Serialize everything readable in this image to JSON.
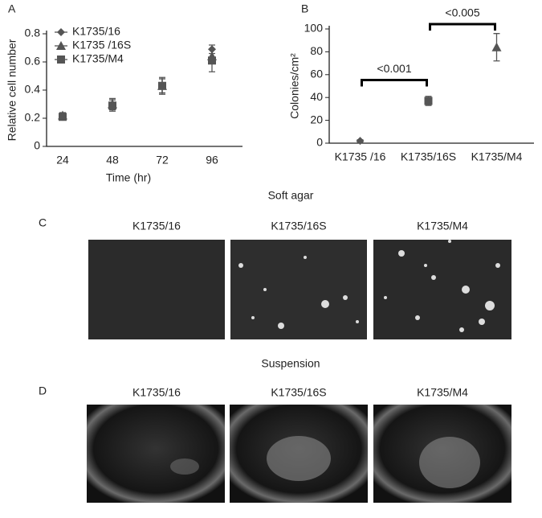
{
  "chart_data": [
    {
      "type": "scatter",
      "panel": "A",
      "x_label": "Time (hr)",
      "y_label": "Relative cell number",
      "categories": [
        "24",
        "48",
        "72",
        "96"
      ],
      "series": [
        {
          "name": "K1735/16",
          "color": "#555555",
          "marker": "diamond",
          "values": [
            0.21,
            0.3,
            0.43,
            0.69
          ],
          "errors": [
            0.02,
            0.04,
            0.05,
            0.03
          ]
        },
        {
          "name": "K1735 /16S",
          "color": "#555555",
          "marker": "triangle",
          "values": [
            0.22,
            0.3,
            0.43,
            0.64
          ],
          "errors": [
            0.02,
            0.04,
            0.05,
            0.05
          ]
        },
        {
          "name": "K1735/M4",
          "color": "#555555",
          "marker": "square",
          "values": [
            0.21,
            0.29,
            0.43,
            0.61
          ],
          "errors": [
            0.02,
            0.04,
            0.06,
            0.08
          ]
        }
      ],
      "ylim": [
        0,
        0.8
      ],
      "yticks": [
        0,
        0.2,
        0.4,
        0.6,
        0.8
      ],
      "legend": "top-left"
    },
    {
      "type": "scatter",
      "panel": "B",
      "y_label": "Colonies/cm²",
      "categories": [
        "K1735 /16",
        "K1735/16S",
        "K1735/M4"
      ],
      "values": [
        2,
        37,
        84
      ],
      "errors": [
        1,
        4,
        12
      ],
      "markers": [
        "diamond",
        "square",
        "triangle"
      ],
      "color": "#555555",
      "ylim": [
        0,
        100
      ],
      "yticks": [
        0,
        20,
        40,
        60,
        80,
        100
      ],
      "annotations": [
        "<0.001",
        "<0.005"
      ]
    }
  ],
  "sections": [
    {
      "letter": "C",
      "title": "Soft agar",
      "captions": [
        "K1735/16",
        "K1735/16S",
        "K1735/M4"
      ]
    },
    {
      "letter": "D",
      "title": "Suspension",
      "captions": [
        "K1735/16",
        "K1735/16S",
        "K1735/M4"
      ]
    }
  ]
}
